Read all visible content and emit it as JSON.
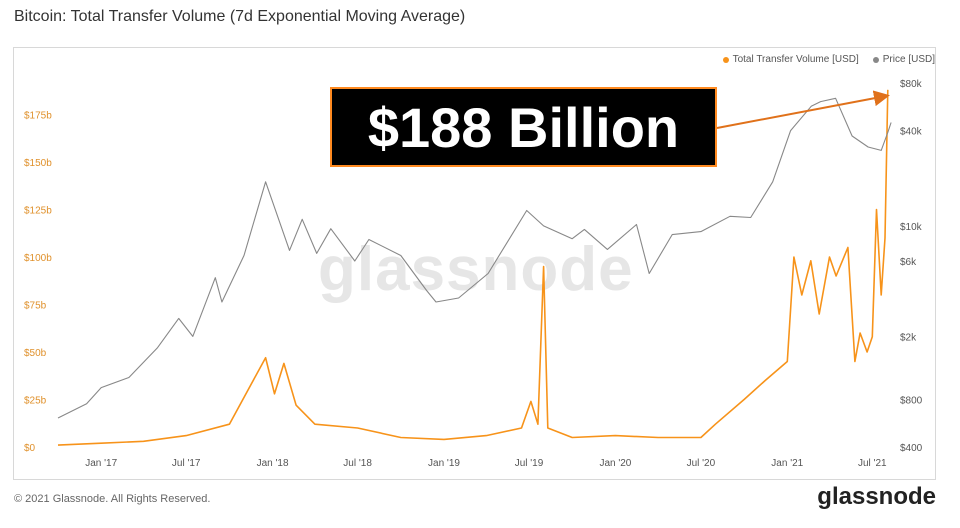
{
  "header": {
    "title": "Bitcoin: Total Transfer Volume (7d Exponential Moving Average)"
  },
  "legend": {
    "items": [
      {
        "label": "Total Transfer Volume [USD]",
        "color": "#f7931a"
      },
      {
        "label": "Price [USD]",
        "color": "#888888"
      }
    ]
  },
  "callout": {
    "text": "$188 Billion"
  },
  "watermark": {
    "text": "glassnode"
  },
  "footer": {
    "copyright": "© 2021 Glassnode. All Rights Reserved.",
    "logo": "glassnode"
  },
  "chart_data": {
    "type": "line",
    "title": "Bitcoin: Total Transfer Volume (7d Exponential Moving Average)",
    "x_ticks": [
      "Jan '17",
      "Jul '17",
      "Jan '18",
      "Jul '18",
      "Jan '19",
      "Jul '19",
      "Jan '20",
      "Jul '20",
      "Jan '21",
      "Jul '21"
    ],
    "y_left_ticks": [
      "$0",
      "$25b",
      "$50b",
      "$75b",
      "$100b",
      "$125b",
      "$150b",
      "$175b"
    ],
    "y_left_range": [
      0,
      200
    ],
    "y_left_unit": "billion USD",
    "y_right_ticks": [
      "$400",
      "$800",
      "$2k",
      "$6k",
      "$10k",
      "$40k",
      "$80k"
    ],
    "y_right_scale": "log",
    "y_right_range": [
      400,
      80000
    ],
    "grid": false,
    "legend_position": "top-right",
    "series": [
      {
        "name": "Total Transfer Volume [USD]",
        "axis": "left",
        "color": "#f7931a",
        "points": [
          [
            "2016-10-01",
            1
          ],
          [
            "2017-01-01",
            2
          ],
          [
            "2017-04-01",
            3
          ],
          [
            "2017-07-01",
            6
          ],
          [
            "2017-10-01",
            12
          ],
          [
            "2017-12-17",
            47
          ],
          [
            "2018-01-05",
            28
          ],
          [
            "2018-01-25",
            44
          ],
          [
            "2018-02-20",
            22
          ],
          [
            "2018-04-01",
            12
          ],
          [
            "2018-07-01",
            10
          ],
          [
            "2018-10-01",
            5
          ],
          [
            "2019-01-01",
            4
          ],
          [
            "2019-04-01",
            6
          ],
          [
            "2019-06-15",
            10
          ],
          [
            "2019-07-05",
            24
          ],
          [
            "2019-07-20",
            12
          ],
          [
            "2019-08-01",
            95
          ],
          [
            "2019-08-10",
            10
          ],
          [
            "2019-10-01",
            5
          ],
          [
            "2020-01-01",
            6
          ],
          [
            "2020-04-01",
            5
          ],
          [
            "2020-07-01",
            5
          ],
          [
            "2020-08-01",
            12
          ],
          [
            "2020-10-01",
            25
          ],
          [
            "2020-11-15",
            35
          ],
          [
            "2021-01-01",
            45
          ],
          [
            "2021-01-15",
            100
          ],
          [
            "2021-02-01",
            80
          ],
          [
            "2021-02-20",
            98
          ],
          [
            "2021-03-10",
            70
          ],
          [
            "2021-04-01",
            100
          ],
          [
            "2021-04-15",
            90
          ],
          [
            "2021-05-10",
            105
          ],
          [
            "2021-05-25",
            45
          ],
          [
            "2021-06-05",
            60
          ],
          [
            "2021-06-20",
            50
          ],
          [
            "2021-07-01",
            58
          ],
          [
            "2021-07-10",
            125
          ],
          [
            "2021-07-20",
            80
          ],
          [
            "2021-07-28",
            110
          ],
          [
            "2021-08-03",
            188
          ]
        ]
      },
      {
        "name": "Price [USD]",
        "axis": "right",
        "color": "#888888",
        "points": [
          [
            "2016-10-01",
            610
          ],
          [
            "2016-12-01",
            750
          ],
          [
            "2017-01-01",
            950
          ],
          [
            "2017-03-01",
            1100
          ],
          [
            "2017-05-01",
            1700
          ],
          [
            "2017-06-15",
            2600
          ],
          [
            "2017-07-15",
            2000
          ],
          [
            "2017-09-01",
            4700
          ],
          [
            "2017-09-15",
            3300
          ],
          [
            "2017-11-01",
            6500
          ],
          [
            "2017-12-17",
            19000
          ],
          [
            "2018-02-06",
            7000
          ],
          [
            "2018-03-05",
            11000
          ],
          [
            "2018-04-05",
            6700
          ],
          [
            "2018-05-05",
            9600
          ],
          [
            "2018-06-25",
            6000
          ],
          [
            "2018-07-25",
            8200
          ],
          [
            "2018-10-01",
            6500
          ],
          [
            "2018-11-25",
            3900
          ],
          [
            "2018-12-15",
            3300
          ],
          [
            "2019-02-01",
            3500
          ],
          [
            "2019-04-05",
            5000
          ],
          [
            "2019-06-26",
            12500
          ],
          [
            "2019-08-01",
            10000
          ],
          [
            "2019-10-01",
            8300
          ],
          [
            "2019-10-27",
            9500
          ],
          [
            "2019-12-15",
            7100
          ],
          [
            "2020-02-15",
            10200
          ],
          [
            "2020-03-13",
            5000
          ],
          [
            "2020-05-01",
            8800
          ],
          [
            "2020-07-01",
            9200
          ],
          [
            "2020-09-01",
            11500
          ],
          [
            "2020-10-15",
            11300
          ],
          [
            "2020-12-01",
            19000
          ],
          [
            "2021-01-08",
            40000
          ],
          [
            "2021-02-21",
            57000
          ],
          [
            "2021-03-13",
            61000
          ],
          [
            "2021-04-14",
            64000
          ],
          [
            "2021-05-19",
            37000
          ],
          [
            "2021-06-22",
            31500
          ],
          [
            "2021-07-20",
            30000
          ],
          [
            "2021-08-03",
            39000
          ],
          [
            "2021-08-10",
            45000
          ]
        ]
      }
    ],
    "annotations": [
      {
        "text": "$188 Billion",
        "points_to": [
          "2021-08-03",
          188
        ]
      }
    ]
  }
}
